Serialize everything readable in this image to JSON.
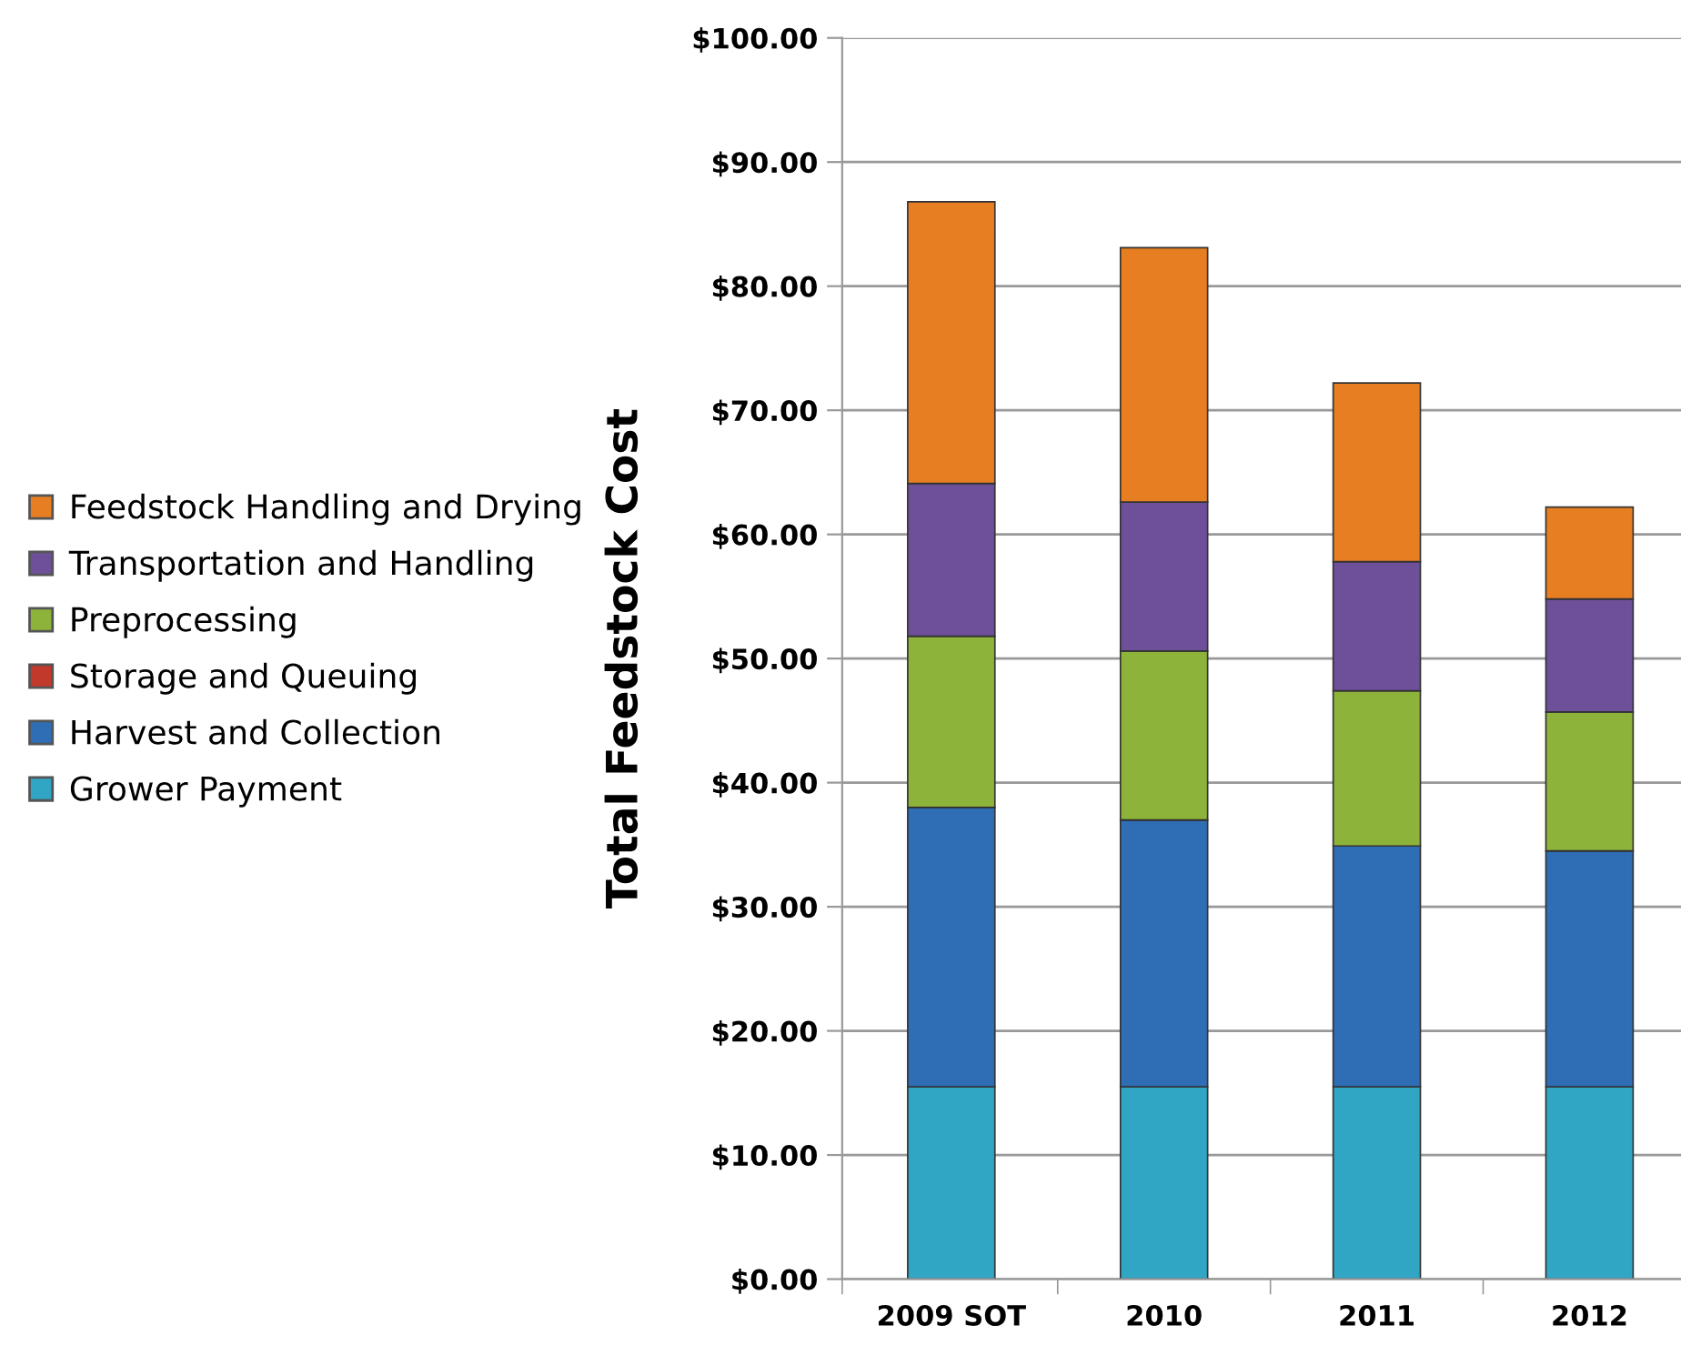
{
  "chart_data": {
    "type": "bar",
    "stacked": true,
    "ylabel": "Total Feedstock Cost",
    "categories": [
      "2009 SOT",
      "2010",
      "2011",
      "2012"
    ],
    "series": [
      {
        "name": "Grower Payment",
        "color": "#31a5c4",
        "values": [
          15.5,
          15.5,
          15.5,
          15.5
        ]
      },
      {
        "name": "Harvest and Collection",
        "color": "#2f6db5",
        "values": [
          22.5,
          21.5,
          19.4,
          19.0
        ]
      },
      {
        "name": "Storage and Queuing",
        "color": "#c0392b",
        "values": [
          0,
          0,
          0,
          0
        ]
      },
      {
        "name": "Preprocessing",
        "color": "#8db33b",
        "values": [
          13.8,
          13.6,
          12.5,
          11.2
        ]
      },
      {
        "name": "Transportation and Handling",
        "color": "#6e4f9a",
        "values": [
          12.3,
          12.0,
          10.4,
          9.1
        ]
      },
      {
        "name": "Feedstock Handling and Drying",
        "color": "#e87e22",
        "values": [
          22.7,
          20.5,
          14.4,
          7.4
        ]
      }
    ],
    "ylim": [
      0,
      100
    ],
    "yticks": [
      {
        "value": 0,
        "label": "$0.00"
      },
      {
        "value": 10,
        "label": "$10.00"
      },
      {
        "value": 20,
        "label": "$20.00"
      },
      {
        "value": 30,
        "label": "$30.00"
      },
      {
        "value": 40,
        "label": "$40.00"
      },
      {
        "value": 50,
        "label": "$50.00"
      },
      {
        "value": 60,
        "label": "$60.00"
      },
      {
        "value": 70,
        "label": "$70.00"
      },
      {
        "value": 80,
        "label": "$80.00"
      },
      {
        "value": 90,
        "label": "$90.00"
      },
      {
        "value": 100,
        "label": "$100.00"
      }
    ],
    "grid": "y",
    "legend": "left"
  }
}
